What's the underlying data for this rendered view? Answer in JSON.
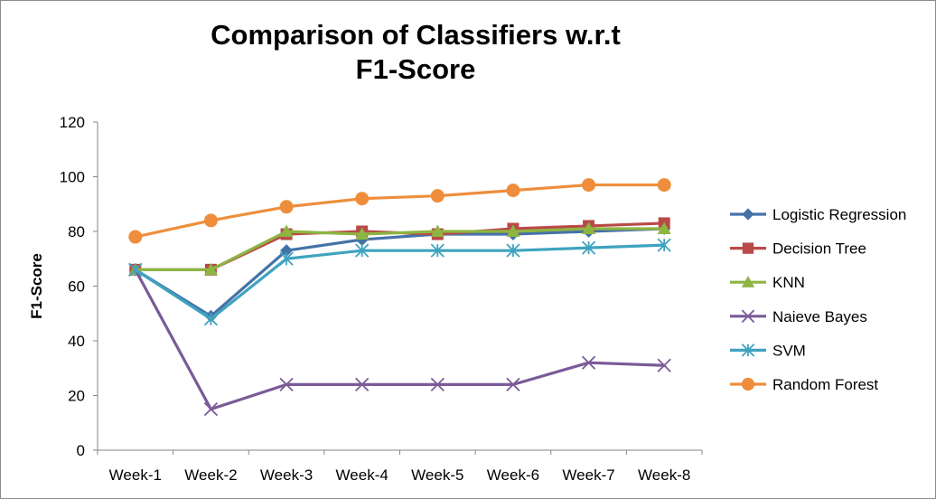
{
  "chart_data": {
    "type": "line",
    "title_lines": [
      "Comparison of Classifiers w.r.t",
      "F1-Score"
    ],
    "xlabel": "",
    "ylabel": "F1-Score",
    "ylim": [
      0,
      120
    ],
    "yticks": [
      0,
      20,
      40,
      60,
      80,
      100,
      120
    ],
    "grid": false,
    "legend": "right",
    "categories": [
      "Week-1",
      "Week-2",
      "Week-3",
      "Week-4",
      "Week-5",
      "Week-6",
      "Week-7",
      "Week-8"
    ],
    "series": [
      {
        "name": "Logistic Regression",
        "color": "#4472a8",
        "marker": "diamond",
        "values": [
          66,
          49,
          73,
          77,
          79,
          79,
          80,
          81
        ]
      },
      {
        "name": "Decision Tree",
        "color": "#b94a48",
        "marker": "square",
        "values": [
          66,
          66,
          79,
          80,
          79,
          81,
          82,
          83
        ]
      },
      {
        "name": "KNN",
        "color": "#8db542",
        "marker": "triangle",
        "values": [
          66,
          66,
          80,
          79,
          80,
          80,
          81,
          81
        ]
      },
      {
        "name": "Naieve Bayes",
        "color": "#7a5a98",
        "marker": "x",
        "values": [
          66,
          15,
          24,
          24,
          24,
          24,
          32,
          31
        ]
      },
      {
        "name": "SVM",
        "color": "#3fa3bf",
        "marker": "star",
        "values": [
          66,
          48,
          70,
          73,
          73,
          73,
          74,
          75
        ]
      },
      {
        "name": "Random Forest",
        "color": "#ee8e3c",
        "marker": "circle",
        "values": [
          78,
          84,
          89,
          92,
          93,
          95,
          97,
          97
        ]
      }
    ]
  }
}
